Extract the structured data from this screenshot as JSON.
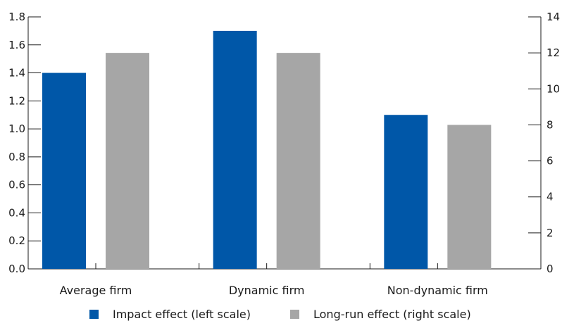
{
  "chart_data": {
    "type": "bar",
    "categories": [
      "Average firm",
      "Dynamic firm",
      "Non-dynamic firm"
    ],
    "series": [
      {
        "name": "Impact effect (left scale)",
        "axis": "left",
        "color": "#0057a8",
        "values": [
          1.4,
          1.7,
          1.1
        ]
      },
      {
        "name": "Long-run effect (right scale)",
        "axis": "right",
        "color": "#a6a6a6",
        "values": [
          12,
          12,
          8
        ]
      }
    ],
    "y_left": {
      "min": 0,
      "max": 1.8,
      "ticks": [
        "0.0",
        "0.2",
        "0.4",
        "0.6",
        "0.8",
        "1.0",
        "1.2",
        "1.4",
        "1.6",
        "1.8"
      ]
    },
    "y_right": {
      "min": 0,
      "max": 14,
      "ticks": [
        "0",
        "2",
        "4",
        "6",
        "8",
        "10",
        "12",
        "14"
      ]
    },
    "grid": false,
    "legend_position": "bottom"
  }
}
